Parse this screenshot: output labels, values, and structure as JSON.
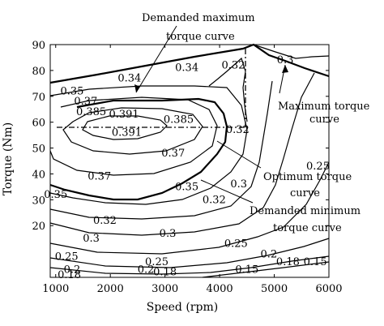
{
  "chart_data": {
    "type": "contour",
    "xlabel": "Speed (rpm)",
    "ylabel": "Torque (Nm)",
    "xlim": [
      900,
      6000
    ],
    "ylim": [
      0,
      90
    ],
    "x_ticks": [
      1000,
      2000,
      3000,
      4000,
      5000,
      6000
    ],
    "y_ticks": [
      20,
      30,
      40,
      50,
      60,
      70,
      80,
      90
    ],
    "annotations": [
      "Demanded maximum torque curve",
      "Maximum torque curve",
      "Optimum torque curve",
      "Demanded minimum torque curve"
    ],
    "contour_labels": [
      {
        "text": "0.34",
        "x": 2350,
        "y": 77
      },
      {
        "text": "0.34",
        "x": 3400,
        "y": 81
      },
      {
        "text": "0.32",
        "x": 4250,
        "y": 82
      },
      {
        "text": "0.3",
        "x": 5200,
        "y": 84
      },
      {
        "text": "0.35",
        "x": 1300,
        "y": 72
      },
      {
        "text": "0.37",
        "x": 1550,
        "y": 68
      },
      {
        "text": "0.385",
        "x": 1650,
        "y": 64
      },
      {
        "text": "0.391",
        "x": 2250,
        "y": 63
      },
      {
        "text": "0.391",
        "x": 2300,
        "y": 56
      },
      {
        "text": "0.385",
        "x": 3250,
        "y": 61
      },
      {
        "text": "0.32",
        "x": 4330,
        "y": 57
      },
      {
        "text": "0.37",
        "x": 3150,
        "y": 48
      },
      {
        "text": "0.37",
        "x": 1800,
        "y": 39
      },
      {
        "text": "0.35",
        "x": 1000,
        "y": 32
      },
      {
        "text": "0.35",
        "x": 3400,
        "y": 35
      },
      {
        "text": "0.32",
        "x": 3900,
        "y": 30
      },
      {
        "text": "0.3",
        "x": 4350,
        "y": 36
      },
      {
        "text": "0.25",
        "x": 5800,
        "y": 43
      },
      {
        "text": "0.32",
        "x": 1900,
        "y": 22
      },
      {
        "text": "0.3",
        "x": 1650,
        "y": 15
      },
      {
        "text": "0.3",
        "x": 3050,
        "y": 17
      },
      {
        "text": "0.25",
        "x": 4300,
        "y": 13
      },
      {
        "text": "0.2",
        "x": 4900,
        "y": 9
      },
      {
        "text": "0.25",
        "x": 1200,
        "y": 8
      },
      {
        "text": "0.25",
        "x": 2850,
        "y": 6
      },
      {
        "text": "0.2",
        "x": 1300,
        "y": 3
      },
      {
        "text": "0.2",
        "x": 2650,
        "y": 3
      },
      {
        "text": "0.18",
        "x": 1250,
        "y": 1
      },
      {
        "text": "0.18",
        "x": 3000,
        "y": 2
      },
      {
        "text": "0.15",
        "x": 4500,
        "y": 3
      },
      {
        "text": "0.18",
        "x": 5250,
        "y": 6
      },
      {
        "text": "0.15",
        "x": 5750,
        "y": 6
      }
    ]
  }
}
